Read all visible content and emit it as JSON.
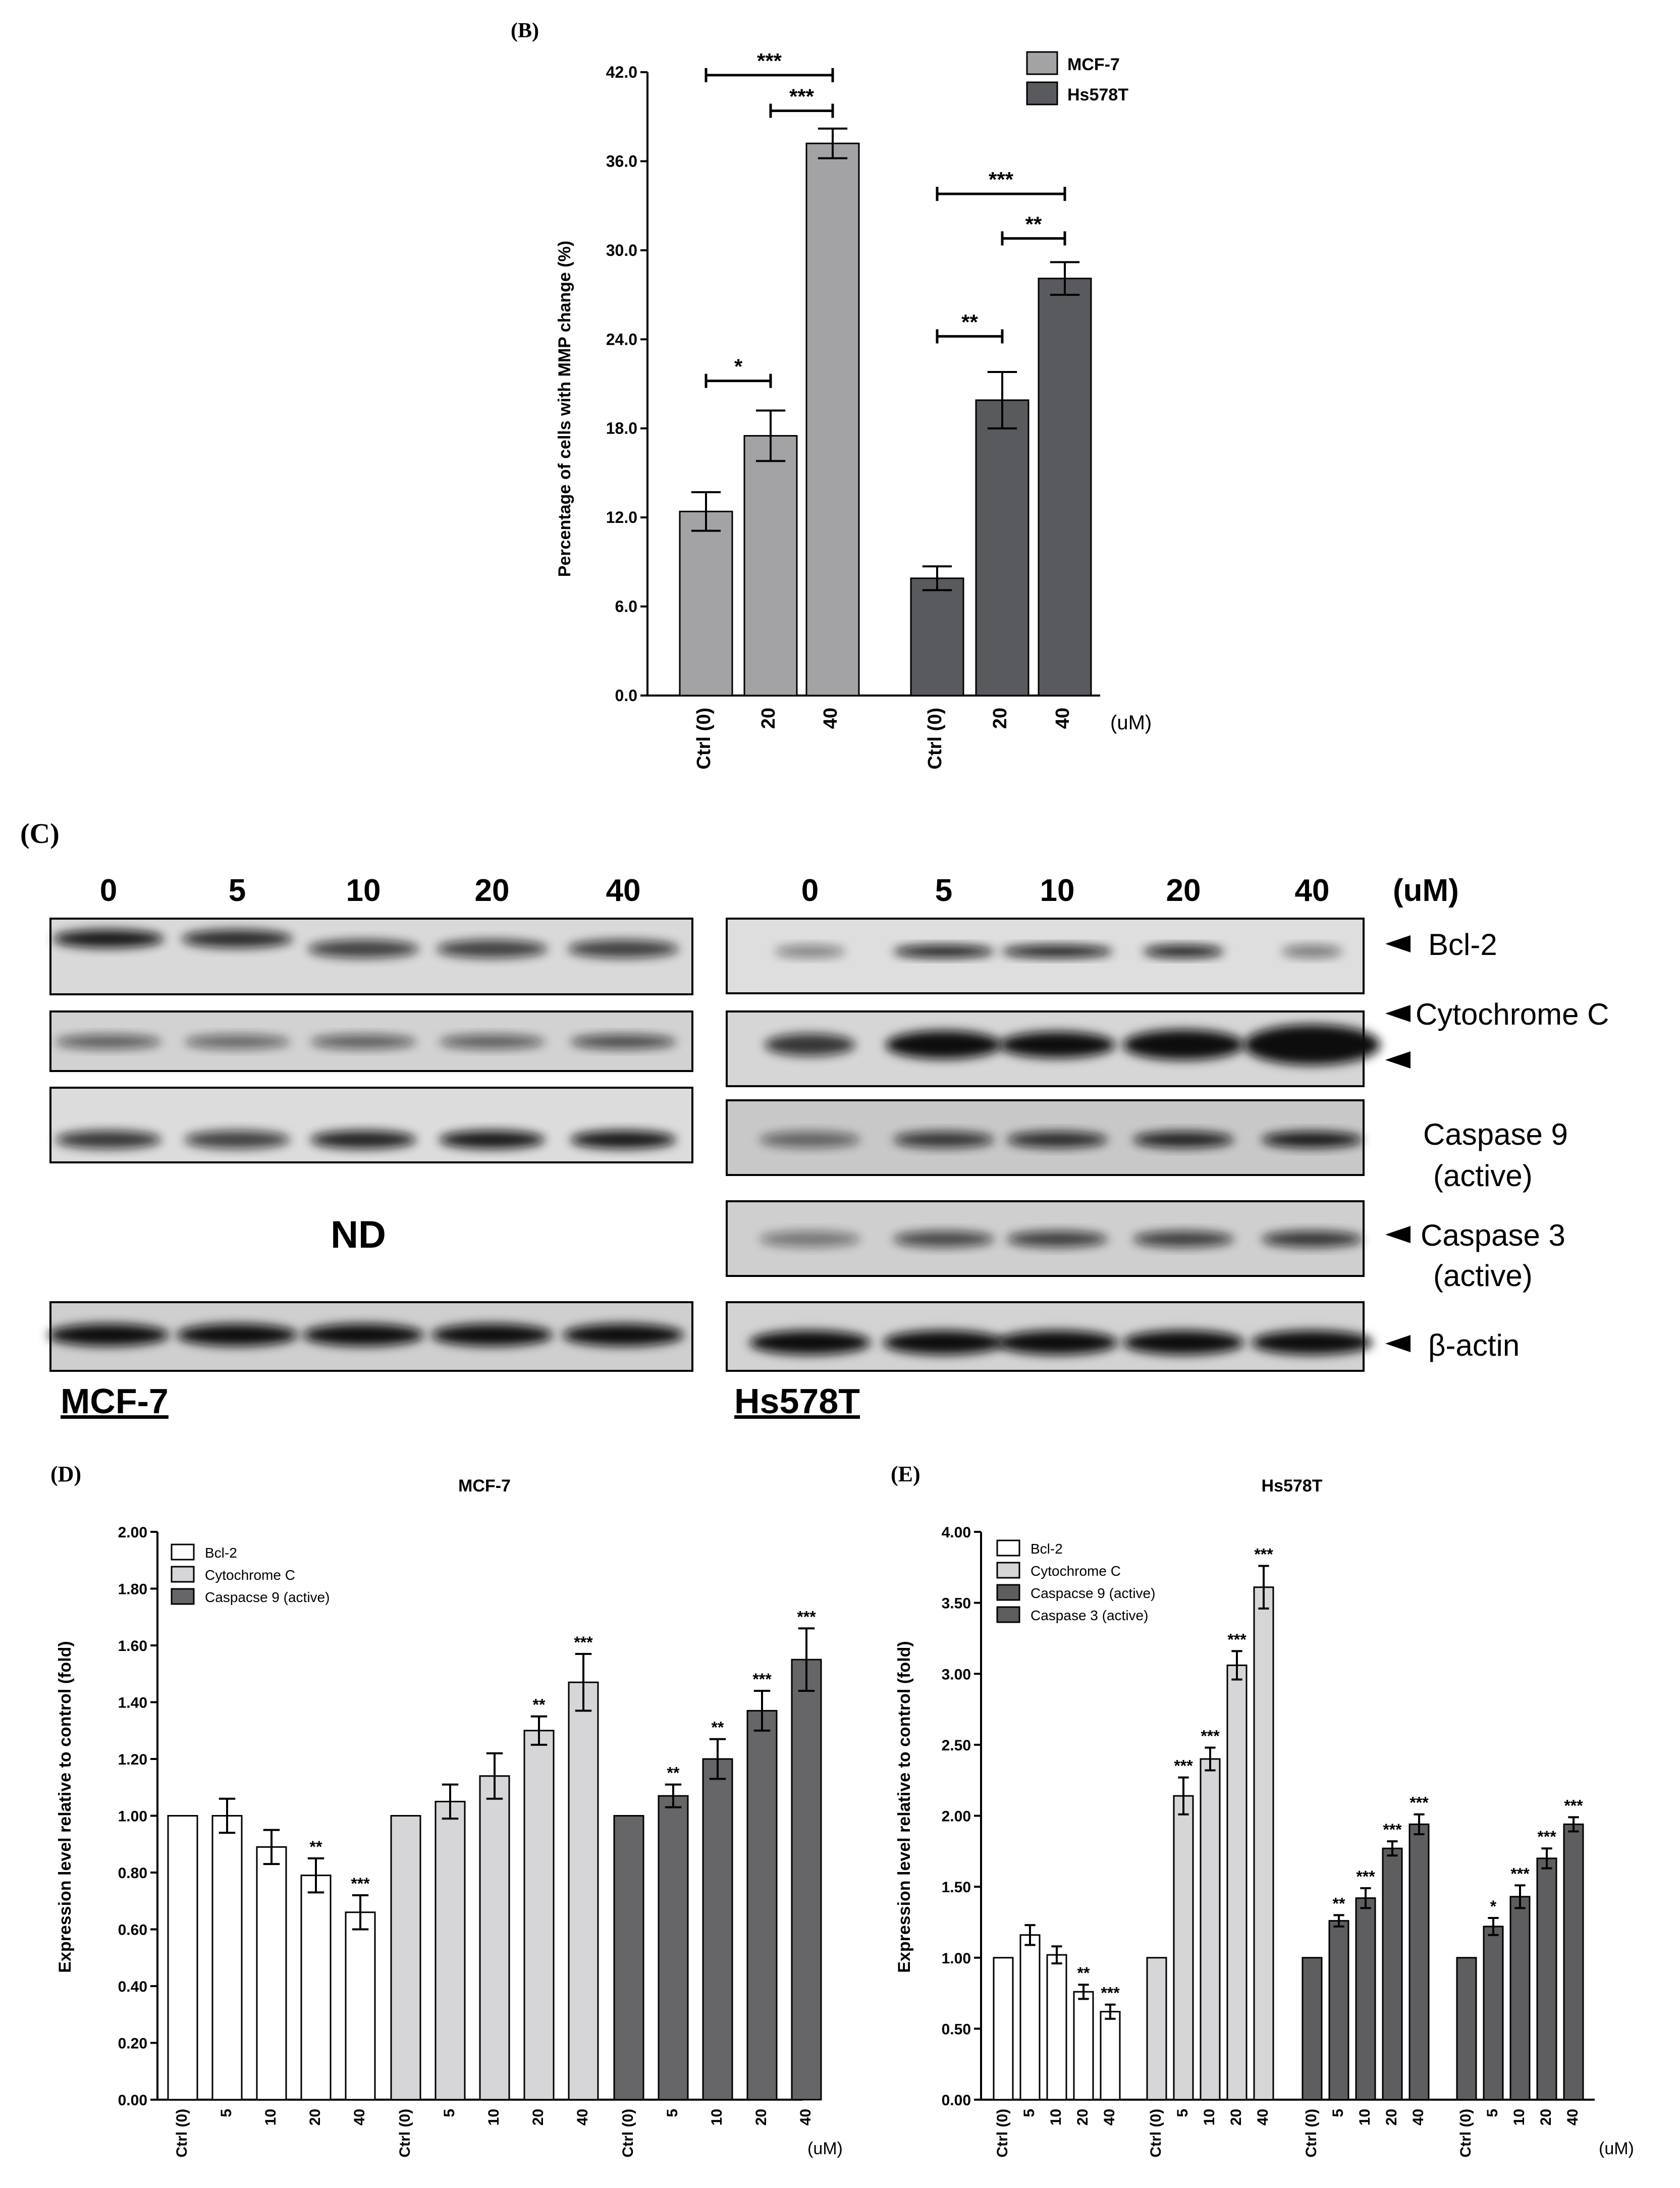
{
  "panel_b": {
    "letter": "(B)",
    "ylabel": "Percentage of cells with MMP change (%)",
    "unit": "(uM)",
    "legend": [
      "MCF-7",
      "Hs578T"
    ],
    "colors": [
      "#a3a3a6",
      "#595a5e"
    ]
  },
  "panel_c": {
    "letter": "(C)",
    "doses": [
      "0",
      "5",
      "10",
      "20",
      "40"
    ],
    "unit": "(uM)",
    "bands": [
      "Bcl-2",
      "Cytochrome C",
      "Caspase 9",
      "(active)",
      "Caspase 3",
      "(active)",
      "β-actin"
    ],
    "nd": "ND",
    "cell_lines": [
      "MCF-7",
      "Hs578T"
    ]
  },
  "panel_d": {
    "letter": "(D)",
    "title": "MCF-7",
    "ylabel": "Expression level relative to control (fold)",
    "unit": "(uM)",
    "legend": [
      "Bcl-2",
      "Cytochrome C",
      "Caspacse 9 (active)"
    ]
  },
  "panel_e": {
    "letter": "(E)",
    "title": "Hs578T",
    "ylabel": "Expression level relative to control (fold)",
    "unit": "(uM)",
    "legend": [
      "Bcl-2",
      "Cytochrome C",
      "Caspacse 9 (active)",
      "Caspase 3 (active)"
    ]
  },
  "chart_data": [
    {
      "type": "bar",
      "ylabel": "Percentage of cells with MMP change (%)",
      "ylim": [
        0,
        42
      ],
      "yticks": [
        "0.0",
        "6.0",
        "12.0",
        "18.0",
        "24.0",
        "30.0",
        "36.0",
        "42.0"
      ],
      "categories": [
        "Ctrl (0)",
        "20",
        "40"
      ],
      "series": [
        {
          "name": "MCF-7",
          "values": [
            12.4,
            17.5,
            37.2
          ],
          "errors": [
            1.3,
            1.7,
            1.0
          ],
          "color": "#a3a3a6"
        },
        {
          "name": "Hs578T",
          "values": [
            7.9,
            19.9,
            28.1
          ],
          "errors": [
            0.8,
            1.9,
            1.1
          ],
          "color": "#595a5e"
        }
      ],
      "significance": [
        {
          "series": 0,
          "from": 0,
          "to": 1,
          "level": 21.2,
          "label": "*"
        },
        {
          "series": 0,
          "from": 1,
          "to": 2,
          "level": 39.4,
          "label": "***"
        },
        {
          "series": 0,
          "from": 0,
          "to": 2,
          "level": 41.8,
          "label": "***"
        },
        {
          "series": 1,
          "from": 0,
          "to": 1,
          "level": 24.2,
          "label": "**"
        },
        {
          "series": 1,
          "from": 1,
          "to": 2,
          "level": 30.8,
          "label": "**"
        },
        {
          "series": 1,
          "from": 0,
          "to": 2,
          "level": 33.8,
          "label": "***"
        }
      ],
      "legend_position": "top-right"
    },
    {
      "type": "bar",
      "title": "MCF-7",
      "ylabel": "Expression level relative to control (fold)",
      "ylim": [
        0,
        2.0
      ],
      "yticks": [
        "0.00",
        "0.20",
        "0.40",
        "0.60",
        "0.80",
        "1.00",
        "1.20",
        "1.40",
        "1.60",
        "1.80",
        "2.00"
      ],
      "categories": [
        "Ctrl (0)",
        "5",
        "10",
        "20",
        "40"
      ],
      "series": [
        {
          "name": "Bcl-2",
          "values": [
            1.0,
            1.0,
            0.89,
            0.79,
            0.66
          ],
          "errors": [
            0,
            0.06,
            0.06,
            0.06,
            0.06
          ],
          "labels": [
            "",
            "",
            "",
            "**",
            "***"
          ],
          "color": "#ffffff"
        },
        {
          "name": "Cytochrome C",
          "values": [
            1.0,
            1.05,
            1.14,
            1.3,
            1.47
          ],
          "errors": [
            0,
            0.06,
            0.08,
            0.05,
            0.1
          ],
          "labels": [
            "",
            "",
            "",
            "**",
            "***"
          ],
          "color": "#d6d6d8"
        },
        {
          "name": "Caspacse 9 (active)",
          "values": [
            1.0,
            1.07,
            1.2,
            1.37,
            1.55
          ],
          "errors": [
            0,
            0.04,
            0.07,
            0.07,
            0.11
          ],
          "labels": [
            "",
            "**",
            "**",
            "***",
            "***"
          ],
          "color": "#666669"
        }
      ],
      "legend_position": "top-left"
    },
    {
      "type": "bar",
      "title": "Hs578T",
      "ylabel": "Expression level relative to control (fold)",
      "ylim": [
        0,
        4.0
      ],
      "yticks": [
        "0.00",
        "0.50",
        "1.00",
        "1.50",
        "2.00",
        "2.50",
        "3.00",
        "3.50",
        "4.00"
      ],
      "categories": [
        "Ctrl (0)",
        "5",
        "10",
        "20",
        "40"
      ],
      "series": [
        {
          "name": "Bcl-2",
          "values": [
            1.0,
            1.16,
            1.02,
            0.76,
            0.62
          ],
          "errors": [
            0,
            0.07,
            0.06,
            0.05,
            0.05
          ],
          "labels": [
            "",
            "",
            "",
            "**",
            "***"
          ],
          "color": "#ffffff"
        },
        {
          "name": "Cytochrome C",
          "values": [
            1.0,
            2.14,
            2.4,
            3.06,
            3.61
          ],
          "errors": [
            0,
            0.13,
            0.08,
            0.1,
            0.15
          ],
          "labels": [
            "",
            "***",
            "***",
            "***",
            "***"
          ],
          "color": "#d6d6d8"
        },
        {
          "name": "Caspacse 9 (active)",
          "values": [
            1.0,
            1.26,
            1.42,
            1.77,
            1.94
          ],
          "errors": [
            0,
            0.04,
            0.07,
            0.05,
            0.07
          ],
          "labels": [
            "",
            "**",
            "***",
            "***",
            "***"
          ],
          "color": "#5e5e61"
        },
        {
          "name": "Caspase 3 (active)",
          "values": [
            1.0,
            1.22,
            1.43,
            1.7,
            1.94
          ],
          "errors": [
            0,
            0.06,
            0.08,
            0.07,
            0.05
          ],
          "labels": [
            "",
            "*",
            "***",
            "***",
            "***"
          ],
          "color": "#5e5e61"
        }
      ],
      "legend_position": "top-left"
    }
  ]
}
